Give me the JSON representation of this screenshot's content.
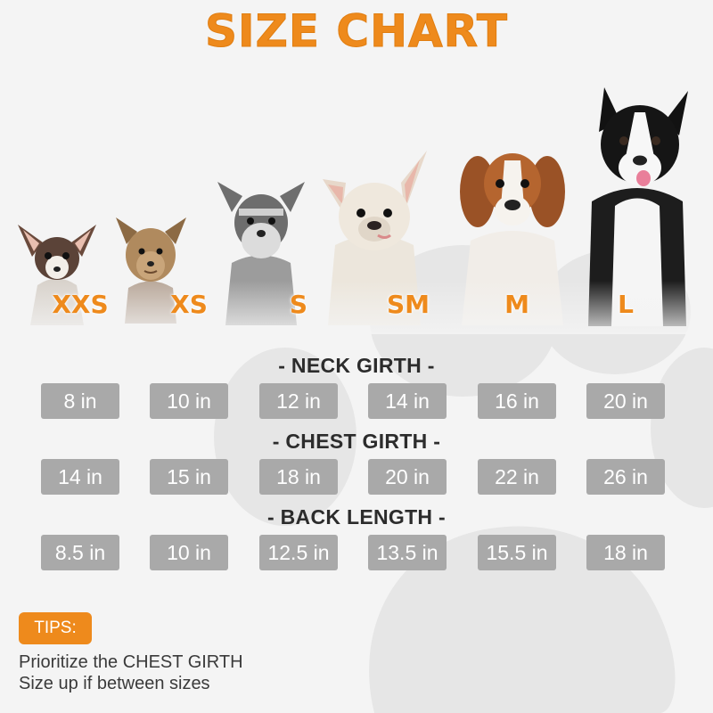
{
  "title": "SIZE CHART",
  "sizes": [
    "XXS",
    "XS",
    "S",
    "SM",
    "M",
    "L"
  ],
  "sections": [
    {
      "title": "- NECK GIRTH -",
      "values": [
        "8 in",
        "10 in",
        "12 in",
        "14 in",
        "16 in",
        "20 in"
      ]
    },
    {
      "title": "- CHEST GIRTH -",
      "values": [
        "14 in",
        "15 in",
        "18 in",
        "20 in",
        "22 in",
        "26 in"
      ]
    },
    {
      "title": "- BACK LENGTH -",
      "values": [
        "8.5 in",
        "10 in",
        "12.5 in",
        "13.5 in",
        "15.5 in",
        "18 in"
      ]
    }
  ],
  "tips": {
    "badge": "TIPS:",
    "lines": [
      "Prioritize the CHEST GIRTH",
      "Size up if between sizes"
    ]
  },
  "colors": {
    "accent": "#ee8a1c",
    "cell_bg": "#a9a9a9",
    "text": "#2c2c2c"
  },
  "dogs": [
    "chihuahua",
    "yorkshire-terrier",
    "schnauzer",
    "french-bulldog",
    "beagle",
    "border-collie"
  ]
}
